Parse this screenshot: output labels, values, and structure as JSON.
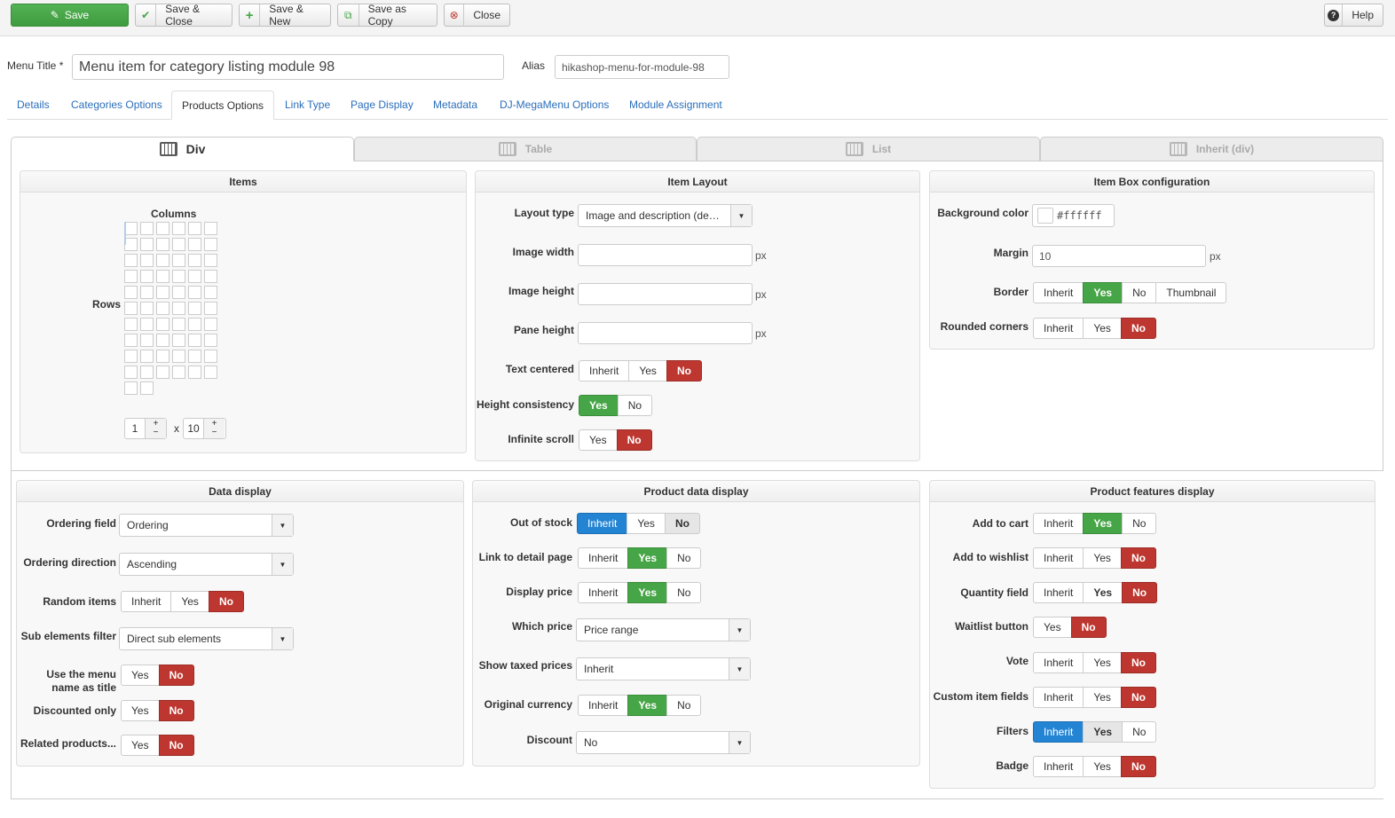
{
  "toolbar": {
    "save": "Save",
    "save_close": "Save & Close",
    "save_new": "Save & New",
    "save_copy": "Save as Copy",
    "close": "Close",
    "help": "Help"
  },
  "form": {
    "menu_title_label": "Menu Title *",
    "menu_title_value": "Menu item for category listing module 98",
    "alias_label": "Alias",
    "alias_value": "hikashop-menu-for-module-98"
  },
  "tabs": [
    "Details",
    "Categories Options",
    "Products Options",
    "Link Type",
    "Page Display",
    "Metadata",
    "DJ-MegaMenu Options",
    "Module Assignment"
  ],
  "active_tab": "Products Options",
  "layout_tabs": [
    "Div",
    "Table",
    "List",
    "Inherit (div)"
  ],
  "items": {
    "title": "Items",
    "columns_label": "Columns",
    "rows_label": "Rows",
    "columns": "1",
    "rows": "10",
    "x": "x"
  },
  "item_layout": {
    "title": "Item Layout",
    "layout_type_label": "Layout type",
    "layout_type_value": "Image and description (depre…",
    "image_width_label": "Image width",
    "image_height_label": "Image height",
    "pane_height_label": "Pane height",
    "px": "px",
    "text_centered_label": "Text centered",
    "height_consistency_label": "Height consistency",
    "infinite_scroll_label": "Infinite scroll"
  },
  "box_config": {
    "title": "Item Box configuration",
    "bg_color_label": "Background color",
    "bg_color_value": "#ffffff",
    "margin_label": "Margin",
    "margin_value": "10",
    "px": "px",
    "border_label": "Border",
    "rounded_label": "Rounded corners"
  },
  "data_display": {
    "title": "Data display",
    "ordering_field_label": "Ordering field",
    "ordering_field_value": "Ordering",
    "ordering_direction_label": "Ordering direction",
    "ordering_direction_value": "Ascending",
    "random_items_label": "Random items",
    "sub_filter_label": "Sub elements filter",
    "sub_filter_value": "Direct sub elements",
    "menu_name_label_1": "Use the menu",
    "menu_name_label_2": "name as title",
    "discounted_only_label": "Discounted only",
    "related_label": "Related products..."
  },
  "product_data": {
    "title": "Product data display",
    "out_of_stock_label": "Out of stock",
    "link_detail_label": "Link to detail page",
    "display_price_label": "Display price",
    "which_price_label": "Which price",
    "which_price_value": "Price range",
    "taxed_label": "Show taxed prices",
    "taxed_value": "Inherit",
    "orig_currency_label": "Original currency",
    "discount_label": "Discount",
    "discount_value": "No"
  },
  "features": {
    "title": "Product features display",
    "add_cart_label": "Add to cart",
    "add_wishlist_label": "Add to wishlist",
    "qty_label": "Quantity field",
    "waitlist_label": "Waitlist button",
    "vote_label": "Vote",
    "custom_label": "Custom item fields",
    "filters_label": "Filters",
    "badge_label": "Badge"
  },
  "opts": {
    "inherit": "Inherit",
    "yes": "Yes",
    "no": "No",
    "thumbnail": "Thumbnail",
    "plus": "+",
    "minus": "−"
  }
}
